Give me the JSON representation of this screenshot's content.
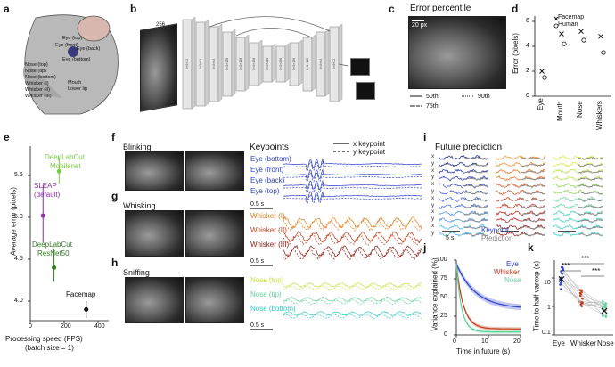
{
  "panels": {
    "a": "a",
    "b": "b",
    "c": "c",
    "d": "d",
    "e": "e",
    "f": "f",
    "g": "g",
    "h": "h",
    "i": "i",
    "j": "j",
    "k": "k"
  },
  "a": {
    "keypoints": [
      "Nose (top)",
      "Nose (tip)",
      "Nose (bottom)",
      "Whisker (I)",
      "Whisker (II)",
      "Whisker (III)",
      "Eye (top)",
      "Eye (front)",
      "Eye (back)",
      "Eye (bottom)",
      "Mouth",
      "Lower lip"
    ]
  },
  "b": {
    "dim": "256",
    "blocks": [
      "3×3×32",
      "3×3×64",
      "3×3×64",
      "3×3×128",
      "3×3×128",
      "3×3×128",
      "3×3×256",
      "3×3×256",
      "3×3×128",
      "3×3×128",
      "3×3×64",
      "3×3×32"
    ]
  },
  "c": {
    "title": "Error percentile",
    "scale": "20 px",
    "legend": [
      "50th",
      "75th",
      "90th"
    ]
  },
  "d": {
    "legend": [
      "Facemap",
      "Human"
    ],
    "ylabel": "Error (pixels)",
    "yticks": [
      "0",
      "2",
      "4",
      "6"
    ],
    "xticks": [
      "Eye",
      "Mouth",
      "Nose",
      "Whiskers"
    ]
  },
  "e": {
    "ylabel": "Average error (pixels)",
    "xlabel": "Processing speed (FPS)",
    "xlabel2": "(batch size = 1)",
    "xticks": [
      "0",
      "200",
      "400"
    ],
    "yticks": [
      "4.0",
      "4.5",
      "5.0",
      "5.5"
    ],
    "methods": [
      {
        "name": "DeepLabCut Mobilenet",
        "l1": "DeepLabCut",
        "l2": "Mobilenet",
        "color": "#7ac943"
      },
      {
        "name": "SLEAP (default)",
        "l1": "SLEAP",
        "l2": "(default)",
        "color": "#8a2ea0"
      },
      {
        "name": "DeepLabCut ResNet50",
        "l1": "DeepLabCut",
        "l2": "ResNet50",
        "color": "#2e7d1f"
      },
      {
        "name": "Facemap",
        "l1": "Facemap",
        "l2": "",
        "color": "#111111"
      }
    ]
  },
  "f": {
    "title": "Blinking",
    "keypoints_title": "Keypoints",
    "legend": [
      "x keypoint",
      "y keypoint"
    ],
    "traces": [
      "Eye (bottom)",
      "Eye (front)",
      "Eye (back)",
      "Eye (top)"
    ],
    "scale": "0.5 s"
  },
  "g": {
    "title": "Whisking",
    "traces": [
      "Whisker (I)",
      "Whisker (II)",
      "Whisker (III)"
    ],
    "scale": "0.5 s"
  },
  "h": {
    "title": "Sniffing",
    "traces": [
      "Nose (top)",
      "Nose (tip)",
      "Nose (bottom)"
    ],
    "scale": "0.5 s"
  },
  "i": {
    "title": "Future prediction",
    "xy": [
      "x",
      "y",
      "x",
      "y",
      "x",
      "y",
      "x",
      "y",
      "x",
      "y",
      "x",
      "y"
    ],
    "legend": [
      "Keypoint",
      "Prediction"
    ],
    "scale": "5 s"
  },
  "j": {
    "ylabel": "Variance explained (%)",
    "xlabel": "Time in future (s)",
    "yticks": [
      "0",
      "25",
      "50",
      "75",
      "100"
    ],
    "xticks": [
      "0",
      "10",
      "20"
    ],
    "legend": [
      "Eye",
      "Whisker",
      "Nose"
    ]
  },
  "k": {
    "ylabel": "Time to half varexp (s)",
    "yticks": [
      "0.1",
      "1",
      "10"
    ],
    "xticks": [
      "Eye",
      "Whisker",
      "Nose"
    ],
    "sig": [
      "***",
      "***",
      "***"
    ]
  },
  "colors": {
    "eye": "#2b3fc9",
    "whisker": "#c43a1a",
    "nose": "#5fd49a",
    "whisker_orange": "#e07a16",
    "nose_yellow": "#c8e03a"
  }
}
